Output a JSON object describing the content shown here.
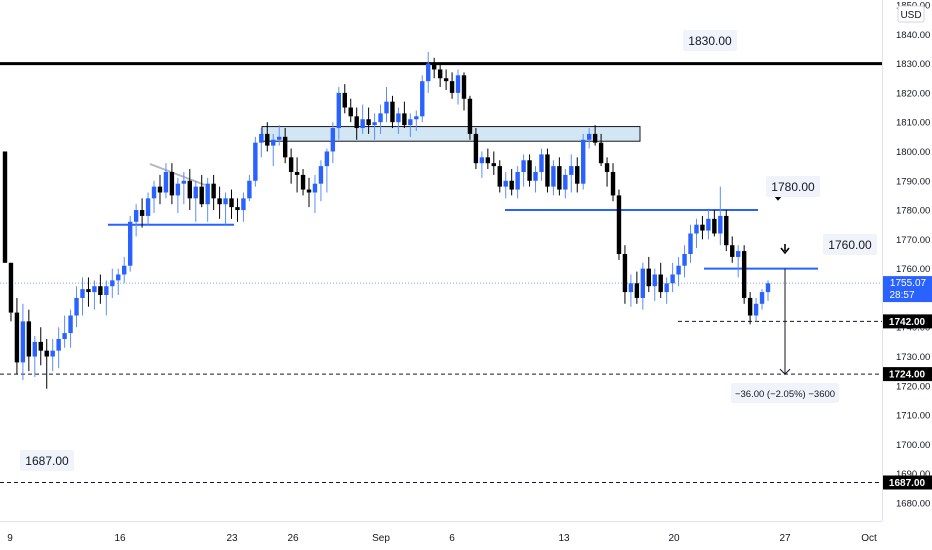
{
  "currency": "USD",
  "chart_data": {
    "type": "candlestick",
    "x_ticks": [
      "9",
      "16",
      "23",
      "26",
      "Sep",
      "6",
      "13",
      "20",
      "27",
      "Oct"
    ],
    "price_ticks": [
      1680,
      1690,
      1700,
      1710,
      1720,
      1730,
      1740,
      1750,
      1760,
      1770,
      1780,
      1790,
      1800,
      1810,
      1820,
      1830,
      1840,
      1850
    ],
    "ylim": [
      1675,
      1852
    ],
    "horizontal_levels": [
      {
        "value": 1830.0,
        "label": "1830.00"
      },
      {
        "value": 1780.0,
        "label": "1780.00"
      },
      {
        "value": 1760.0,
        "label": "1760.00"
      },
      {
        "value": 1742.0,
        "label": "1742.00"
      },
      {
        "value": 1724.0,
        "label": "1724.00"
      },
      {
        "value": 1687.0,
        "label": "1687.00"
      }
    ],
    "zones": [
      {
        "low": 1803.5,
        "high": 1808.5
      }
    ],
    "current_price": {
      "value": "1755.07",
      "countdown": "28:57"
    },
    "measure": {
      "from": 1760,
      "to": 1724,
      "label": "−36.00 (−2.05%) −3600"
    },
    "candles": [
      [
        1800,
        1800,
        1762,
        1762
      ],
      [
        1762,
        1762,
        1742,
        1745
      ],
      [
        1745,
        1750,
        1724,
        1728
      ],
      [
        1728,
        1748,
        1722,
        1742
      ],
      [
        1742,
        1746,
        1725,
        1730
      ],
      [
        1730,
        1737,
        1723,
        1735
      ],
      [
        1735,
        1740,
        1727,
        1732
      ],
      [
        1732,
        1736,
        1719,
        1730
      ],
      [
        1730,
        1736,
        1725,
        1732
      ],
      [
        1732,
        1740,
        1726,
        1736
      ],
      [
        1736,
        1744,
        1733,
        1738
      ],
      [
        1738,
        1746,
        1733,
        1744
      ],
      [
        1744,
        1754,
        1740,
        1750
      ],
      [
        1750,
        1757,
        1744,
        1753
      ],
      [
        1753,
        1757,
        1747,
        1752
      ],
      [
        1752,
        1756,
        1746,
        1754
      ],
      [
        1754,
        1758,
        1748,
        1751
      ],
      [
        1751,
        1756,
        1744,
        1754
      ],
      [
        1754,
        1760,
        1750,
        1756
      ],
      [
        1756,
        1760,
        1751,
        1758
      ],
      [
        1758,
        1764,
        1755,
        1761
      ],
      [
        1761,
        1778,
        1759,
        1776
      ],
      [
        1776,
        1782,
        1771,
        1780
      ],
      [
        1780,
        1784,
        1774,
        1778
      ],
      [
        1778,
        1786,
        1775,
        1784
      ],
      [
        1784,
        1790,
        1779,
        1788
      ],
      [
        1788,
        1792,
        1782,
        1786
      ],
      [
        1786,
        1796,
        1784,
        1793
      ],
      [
        1793,
        1796,
        1782,
        1785
      ],
      [
        1785,
        1791,
        1779,
        1789
      ],
      [
        1789,
        1793,
        1782,
        1790
      ],
      [
        1790,
        1794,
        1780,
        1784
      ],
      [
        1784,
        1790,
        1776,
        1788
      ],
      [
        1788,
        1792,
        1781,
        1782
      ],
      [
        1782,
        1791,
        1776,
        1789
      ],
      [
        1789,
        1792,
        1780,
        1784
      ],
      [
        1784,
        1788,
        1777,
        1782
      ],
      [
        1782,
        1786,
        1775,
        1784
      ],
      [
        1784,
        1787,
        1777,
        1781
      ],
      [
        1781,
        1784,
        1776,
        1780
      ],
      [
        1780,
        1786,
        1776,
        1784
      ],
      [
        1784,
        1792,
        1783,
        1790
      ],
      [
        1790,
        1805,
        1788,
        1803
      ],
      [
        1803,
        1808,
        1798,
        1806
      ],
      [
        1806,
        1810,
        1800,
        1802
      ],
      [
        1802,
        1806,
        1795,
        1804
      ],
      [
        1804,
        1809,
        1802,
        1805
      ],
      [
        1805,
        1808,
        1796,
        1798
      ],
      [
        1798,
        1801,
        1789,
        1793
      ],
      [
        1793,
        1798,
        1786,
        1792
      ],
      [
        1792,
        1794,
        1785,
        1787
      ],
      [
        1787,
        1791,
        1781,
        1786
      ],
      [
        1786,
        1792,
        1779,
        1789
      ],
      [
        1789,
        1797,
        1783,
        1795
      ],
      [
        1795,
        1801,
        1786,
        1800
      ],
      [
        1800,
        1810,
        1796,
        1808
      ],
      [
        1808,
        1822,
        1804,
        1820
      ],
      [
        1820,
        1823,
        1813,
        1815
      ],
      [
        1815,
        1818,
        1810,
        1812
      ],
      [
        1812,
        1815,
        1804,
        1808
      ],
      [
        1808,
        1816,
        1806,
        1811
      ],
      [
        1811,
        1815,
        1806,
        1809
      ],
      [
        1809,
        1813,
        1804,
        1810
      ],
      [
        1810,
        1816,
        1806,
        1813
      ],
      [
        1813,
        1822,
        1810,
        1817
      ],
      [
        1817,
        1819,
        1808,
        1810
      ],
      [
        1810,
        1815,
        1806,
        1813
      ],
      [
        1813,
        1817,
        1808,
        1809
      ],
      [
        1809,
        1813,
        1805,
        1811
      ],
      [
        1811,
        1814,
        1807,
        1812
      ],
      [
        1812,
        1826,
        1810,
        1824
      ],
      [
        1824,
        1834,
        1820,
        1830
      ],
      [
        1830,
        1832,
        1825,
        1828
      ],
      [
        1828,
        1830,
        1822,
        1825
      ],
      [
        1825,
        1828,
        1821,
        1824
      ],
      [
        1824,
        1827,
        1818,
        1820
      ],
      [
        1820,
        1828,
        1816,
        1826
      ],
      [
        1826,
        1827,
        1814,
        1818
      ],
      [
        1818,
        1819,
        1804,
        1806
      ],
      [
        1806,
        1808,
        1794,
        1796
      ],
      [
        1796,
        1800,
        1791,
        1798
      ],
      [
        1798,
        1801,
        1794,
        1796
      ],
      [
        1796,
        1800,
        1792,
        1795
      ],
      [
        1795,
        1797,
        1786,
        1788
      ],
      [
        1788,
        1793,
        1784,
        1790
      ],
      [
        1790,
        1794,
        1785,
        1787
      ],
      [
        1787,
        1795,
        1784,
        1793
      ],
      [
        1793,
        1799,
        1788,
        1797
      ],
      [
        1797,
        1799,
        1788,
        1790
      ],
      [
        1790,
        1795,
        1786,
        1793
      ],
      [
        1793,
        1801,
        1790,
        1799
      ],
      [
        1799,
        1801,
        1786,
        1788
      ],
      [
        1788,
        1797,
        1785,
        1795
      ],
      [
        1795,
        1798,
        1785,
        1787
      ],
      [
        1787,
        1794,
        1784,
        1792
      ],
      [
        1792,
        1799,
        1786,
        1795
      ],
      [
        1795,
        1798,
        1786,
        1789
      ],
      [
        1789,
        1806,
        1787,
        1804
      ],
      [
        1804,
        1808,
        1801,
        1806
      ],
      [
        1806,
        1809,
        1802,
        1803
      ],
      [
        1803,
        1806,
        1795,
        1796
      ],
      [
        1796,
        1798,
        1788,
        1793
      ],
      [
        1793,
        1796,
        1783,
        1785
      ],
      [
        1785,
        1787,
        1763,
        1765
      ],
      [
        1765,
        1768,
        1748,
        1752
      ],
      [
        1752,
        1758,
        1747,
        1755
      ],
      [
        1755,
        1759,
        1748,
        1750
      ],
      [
        1750,
        1762,
        1746,
        1760
      ],
      [
        1760,
        1764,
        1752,
        1754
      ],
      [
        1754,
        1760,
        1749,
        1758
      ],
      [
        1758,
        1762,
        1750,
        1752
      ],
      [
        1752,
        1757,
        1748,
        1755
      ],
      [
        1755,
        1762,
        1752,
        1758
      ],
      [
        1758,
        1764,
        1754,
        1761
      ],
      [
        1761,
        1768,
        1757,
        1765
      ],
      [
        1765,
        1775,
        1762,
        1772
      ],
      [
        1772,
        1777,
        1767,
        1775
      ],
      [
        1775,
        1778,
        1770,
        1773
      ],
      [
        1773,
        1780,
        1770,
        1777
      ],
      [
        1777,
        1780,
        1771,
        1772
      ],
      [
        1772,
        1788,
        1768,
        1778
      ],
      [
        1778,
        1780,
        1766,
        1768
      ],
      [
        1768,
        1771,
        1762,
        1764
      ],
      [
        1764,
        1768,
        1757,
        1766
      ],
      [
        1766,
        1768,
        1748,
        1750
      ],
      [
        1750,
        1752,
        1741,
        1744
      ],
      [
        1744,
        1750,
        1742,
        1748
      ],
      [
        1748,
        1753,
        1746,
        1752
      ],
      [
        1752,
        1756,
        1749,
        1755
      ]
    ]
  }
}
